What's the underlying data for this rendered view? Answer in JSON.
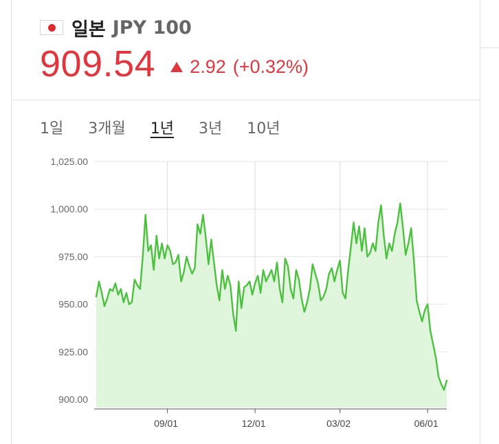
{
  "header": {
    "country": "일본",
    "currency": "JPY 100",
    "price": "909.54",
    "change": "2.92",
    "change_pct": "(+0.32%)",
    "flag_icon": "japan-flag-icon",
    "direction_icon": "triangle-up-icon",
    "up_color": "#e0373f"
  },
  "tabs": [
    {
      "label": "1일",
      "active": false
    },
    {
      "label": "3개월",
      "active": false
    },
    {
      "label": "1년",
      "active": true
    },
    {
      "label": "3년",
      "active": false
    },
    {
      "label": "10년",
      "active": false
    }
  ],
  "chart_data": {
    "type": "area",
    "line_color": "#4cc13f",
    "fill_color": "#dff5dc",
    "ylim": [
      895,
      1025
    ],
    "yticks": [
      "1,025.00",
      "1,000.00",
      "975.00",
      "950.00",
      "925.00",
      "900.00"
    ],
    "ytick_values": [
      1025,
      1000,
      975,
      950,
      925,
      900
    ],
    "xticks": [
      "09/01",
      "12/01",
      "03/02",
      "06/01"
    ],
    "xtick_index": [
      26,
      58,
      89,
      121
    ],
    "grid": true,
    "values": [
      954,
      962,
      956,
      949,
      953,
      958,
      957,
      961,
      955,
      958,
      951,
      956,
      950,
      951,
      963,
      960,
      958,
      975,
      997,
      978,
      981,
      968,
      986,
      974,
      982,
      974,
      981,
      978,
      971,
      972,
      976,
      962,
      967,
      975,
      970,
      966,
      969,
      992,
      987,
      997,
      985,
      971,
      984,
      972,
      960,
      952,
      968,
      958,
      965,
      960,
      945,
      936,
      962,
      948,
      959,
      960,
      962,
      955,
      961,
      965,
      956,
      968,
      962,
      965,
      968,
      962,
      972,
      958,
      951,
      974,
      970,
      958,
      953,
      968,
      963,
      953,
      946,
      951,
      958,
      971,
      966,
      961,
      952,
      954,
      958,
      966,
      969,
      962,
      968,
      973,
      956,
      953,
      968,
      980,
      993,
      982,
      991,
      978,
      990,
      975,
      977,
      982,
      978,
      993,
      1002,
      986,
      974,
      982,
      978,
      987,
      993,
      1003,
      990,
      976,
      982,
      990,
      973,
      952,
      946,
      941,
      947,
      950,
      936,
      929,
      922,
      912,
      908,
      905,
      910
    ]
  }
}
